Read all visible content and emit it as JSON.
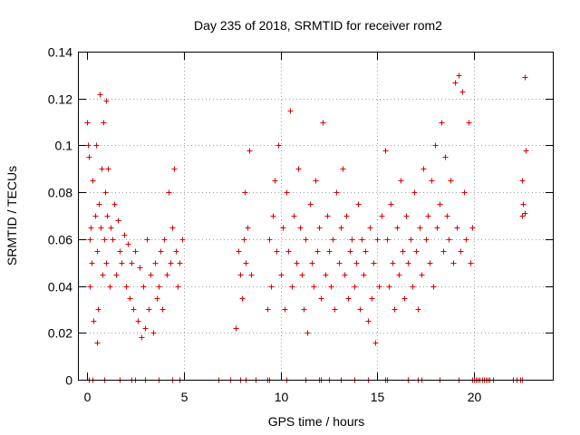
{
  "chart_data": {
    "type": "scatter",
    "title": "Day 235 of 2018, SRMTID for receiver rom2",
    "xlabel": "GPS time / hours",
    "ylabel": "SRMTID / TECUs",
    "xlim": [
      0,
      24
    ],
    "ylim": [
      0,
      0.14
    ],
    "xticks": [
      0,
      5,
      10,
      15,
      20
    ],
    "xtick_labels": [
      "0",
      "5",
      "10",
      "15",
      "20"
    ],
    "yticks": [
      0,
      0.02,
      0.04,
      0.06,
      0.08,
      0.1,
      0.12,
      0.14
    ],
    "ytick_labels": [
      "0",
      "0.02",
      "0.04",
      "0.06",
      "0.08",
      "0.1",
      "0.12",
      "0.14"
    ],
    "grid": true,
    "marker": "plus",
    "color": "#e00000",
    "series": [
      {
        "name": "SRMTID",
        "points": [
          [
            0.0,
            0.11
          ],
          [
            0.05,
            0.1
          ],
          [
            0.1,
            0.095
          ],
          [
            0.12,
            0.06
          ],
          [
            0.15,
            0.04
          ],
          [
            0.2,
            0.065
          ],
          [
            0.25,
            0.05
          ],
          [
            0.3,
            0.085
          ],
          [
            0.35,
            0.025
          ],
          [
            0.4,
            0.07
          ],
          [
            0.45,
            0.1
          ],
          [
            0.5,
            0.016
          ],
          [
            0.5,
            0.055
          ],
          [
            0.55,
            0.03
          ],
          [
            0.6,
            0.075
          ],
          [
            0.65,
            0.122
          ],
          [
            0.7,
            0.065
          ],
          [
            0.75,
            0.09
          ],
          [
            0.8,
            0.045
          ],
          [
            0.85,
            0.11
          ],
          [
            0.9,
            0.06
          ],
          [
            0.95,
            0.08
          ],
          [
            1.0,
            0.119
          ],
          [
            1.0,
            0.05
          ],
          [
            1.05,
            0.07
          ],
          [
            1.1,
            0.09
          ],
          [
            1.15,
            0.04
          ],
          [
            1.2,
            0.065
          ],
          [
            1.3,
            0.06
          ],
          [
            1.4,
            0.075
          ],
          [
            1.5,
            0.045
          ],
          [
            1.6,
            0.068
          ],
          [
            1.7,
            0.055
          ],
          [
            1.8,
            0.05
          ],
          [
            1.9,
            0.062
          ],
          [
            2.0,
            0.04
          ],
          [
            2.1,
            0.058
          ],
          [
            2.2,
            0.035
          ],
          [
            2.3,
            0.05
          ],
          [
            2.4,
            0.03
          ],
          [
            2.5,
            0.055
          ],
          [
            2.6,
            0.025
          ],
          [
            2.7,
            0.048
          ],
          [
            2.8,
            0.018
          ],
          [
            2.9,
            0.04
          ],
          [
            3.0,
            0.022
          ],
          [
            3.1,
            0.06
          ],
          [
            3.2,
            0.03
          ],
          [
            3.3,
            0.045
          ],
          [
            3.4,
            0.02
          ],
          [
            3.5,
            0.05
          ],
          [
            3.6,
            0.035
          ],
          [
            3.7,
            0.04
          ],
          [
            3.8,
            0.055
          ],
          [
            3.9,
            0.03
          ],
          [
            4.0,
            0.06
          ],
          [
            4.1,
            0.045
          ],
          [
            4.2,
            0.08
          ],
          [
            4.3,
            0.05
          ],
          [
            4.4,
            0.065
          ],
          [
            4.5,
            0.09
          ],
          [
            4.6,
            0.055
          ],
          [
            4.7,
            0.04
          ],
          [
            4.8,
            0.05
          ],
          [
            4.9,
            0.06
          ],
          [
            7.7,
            0.022
          ],
          [
            7.8,
            0.055
          ],
          [
            7.9,
            0.045
          ],
          [
            8.0,
            0.035
          ],
          [
            8.1,
            0.06
          ],
          [
            8.15,
            0.08
          ],
          [
            8.2,
            0.05
          ],
          [
            8.3,
            0.065
          ],
          [
            8.4,
            0.098
          ],
          [
            8.5,
            0.045
          ],
          [
            9.3,
            0.03
          ],
          [
            9.4,
            0.06
          ],
          [
            9.5,
            0.04
          ],
          [
            9.6,
            0.07
          ],
          [
            9.7,
            0.085
          ],
          [
            9.8,
            0.055
          ],
          [
            9.9,
            0.1
          ],
          [
            10.0,
            0.045
          ],
          [
            10.1,
            0.065
          ],
          [
            10.2,
            0.03
          ],
          [
            10.3,
            0.08
          ],
          [
            10.4,
            0.055
          ],
          [
            10.5,
            0.115
          ],
          [
            10.6,
            0.04
          ],
          [
            10.7,
            0.07
          ],
          [
            10.8,
            0.05
          ],
          [
            10.9,
            0.09
          ],
          [
            11.0,
            0.065
          ],
          [
            11.1,
            0.045
          ],
          [
            11.2,
            0.03
          ],
          [
            11.3,
            0.06
          ],
          [
            11.4,
            0.02
          ],
          [
            11.5,
            0.075
          ],
          [
            11.6,
            0.05
          ],
          [
            11.7,
            0.04
          ],
          [
            11.8,
            0.085
          ],
          [
            11.9,
            0.055
          ],
          [
            12.0,
            0.065
          ],
          [
            12.1,
            0.035
          ],
          [
            12.2,
            0.11
          ],
          [
            12.3,
            0.045
          ],
          [
            12.4,
            0.07
          ],
          [
            12.5,
            0.055
          ],
          [
            12.6,
            0.04
          ],
          [
            12.7,
            0.06
          ],
          [
            12.8,
            0.03
          ],
          [
            12.9,
            0.08
          ],
          [
            13.0,
            0.05
          ],
          [
            13.1,
            0.065
          ],
          [
            13.2,
            0.09
          ],
          [
            13.3,
            0.045
          ],
          [
            13.4,
            0.07
          ],
          [
            13.5,
            0.035
          ],
          [
            13.6,
            0.055
          ],
          [
            13.7,
            0.06
          ],
          [
            13.8,
            0.04
          ],
          [
            13.9,
            0.05
          ],
          [
            14.0,
            0.075
          ],
          [
            14.1,
            0.03
          ],
          [
            14.2,
            0.06
          ],
          [
            14.3,
            0.045
          ],
          [
            14.4,
            0.055
          ],
          [
            14.5,
            0.025
          ],
          [
            14.6,
            0.065
          ],
          [
            14.7,
            0.035
          ],
          [
            14.8,
            0.05
          ],
          [
            14.9,
            0.016
          ],
          [
            15.0,
            0.06
          ],
          [
            15.1,
            0.04
          ],
          [
            15.2,
            0.07
          ],
          [
            15.4,
            0.098
          ],
          [
            15.5,
            0.06
          ],
          [
            15.6,
            0.04
          ],
          [
            15.7,
            0.075
          ],
          [
            15.8,
            0.05
          ],
          [
            15.9,
            0.03
          ],
          [
            16.0,
            0.065
          ],
          [
            16.1,
            0.045
          ],
          [
            16.2,
            0.085
          ],
          [
            16.3,
            0.055
          ],
          [
            16.4,
            0.035
          ],
          [
            16.5,
            0.07
          ],
          [
            16.6,
            0.05
          ],
          [
            16.7,
            0.06
          ],
          [
            16.8,
            0.04
          ],
          [
            16.9,
            0.08
          ],
          [
            17.0,
            0.055
          ],
          [
            17.1,
            0.03
          ],
          [
            17.2,
            0.065
          ],
          [
            17.3,
            0.045
          ],
          [
            17.4,
            0.09
          ],
          [
            17.5,
            0.06
          ],
          [
            17.6,
            0.07
          ],
          [
            17.7,
            0.05
          ],
          [
            17.8,
            0.085
          ],
          [
            17.9,
            0.04
          ],
          [
            18.0,
            0.1
          ],
          [
            18.1,
            0.065
          ],
          [
            18.2,
            0.075
          ],
          [
            18.3,
            0.11
          ],
          [
            18.4,
            0.055
          ],
          [
            18.5,
            0.095
          ],
          [
            18.6,
            0.07
          ],
          [
            18.7,
            0.06
          ],
          [
            18.8,
            0.085
          ],
          [
            18.9,
            0.05
          ],
          [
            19.0,
            0.127
          ],
          [
            19.1,
            0.065
          ],
          [
            19.2,
            0.13
          ],
          [
            19.3,
            0.055
          ],
          [
            19.4,
            0.123
          ],
          [
            19.5,
            0.08
          ],
          [
            19.6,
            0.06
          ],
          [
            19.7,
            0.11
          ],
          [
            19.8,
            0.05
          ],
          [
            19.9,
            0.065
          ],
          [
            22.6,
            0.129
          ],
          [
            22.65,
            0.098
          ],
          [
            22.5,
            0.085
          ],
          [
            22.55,
            0.075
          ],
          [
            22.6,
            0.071
          ],
          [
            22.5,
            0.07
          ],
          [
            0.1,
            0.0
          ],
          [
            0.3,
            0.0
          ],
          [
            0.9,
            0.0
          ],
          [
            1.7,
            0.0
          ],
          [
            2.3,
            0.0
          ],
          [
            2.5,
            0.0
          ],
          [
            3.0,
            0.0
          ],
          [
            3.7,
            0.0
          ],
          [
            4.4,
            0.0
          ],
          [
            4.8,
            0.0
          ],
          [
            6.8,
            0.0
          ],
          [
            7.4,
            0.0
          ],
          [
            7.9,
            0.0
          ],
          [
            8.2,
            0.0
          ],
          [
            8.7,
            0.0
          ],
          [
            9.3,
            0.0
          ],
          [
            9.4,
            0.0
          ],
          [
            10.3,
            0.0
          ],
          [
            11.3,
            0.0
          ],
          [
            12.0,
            0.0
          ],
          [
            12.1,
            0.0
          ],
          [
            12.5,
            0.0
          ],
          [
            13.1,
            0.0
          ],
          [
            13.8,
            0.0
          ],
          [
            14.5,
            0.0
          ],
          [
            15.4,
            0.0
          ],
          [
            15.5,
            0.0
          ],
          [
            16.6,
            0.0
          ],
          [
            17.1,
            0.0
          ],
          [
            17.3,
            0.0
          ],
          [
            18.2,
            0.0
          ],
          [
            19.2,
            0.0
          ],
          [
            19.9,
            0.0
          ],
          [
            20.0,
            0.0
          ],
          [
            20.1,
            0.0
          ],
          [
            20.2,
            0.0
          ],
          [
            20.3,
            0.0
          ],
          [
            20.4,
            0.0
          ],
          [
            20.5,
            0.0
          ],
          [
            20.6,
            0.0
          ],
          [
            20.7,
            0.0
          ],
          [
            20.8,
            0.0
          ],
          [
            21.0,
            0.0
          ],
          [
            22.0,
            0.0
          ],
          [
            22.2,
            0.0
          ],
          [
            22.4,
            0.0
          ],
          [
            22.5,
            0.0
          ]
        ]
      }
    ]
  }
}
